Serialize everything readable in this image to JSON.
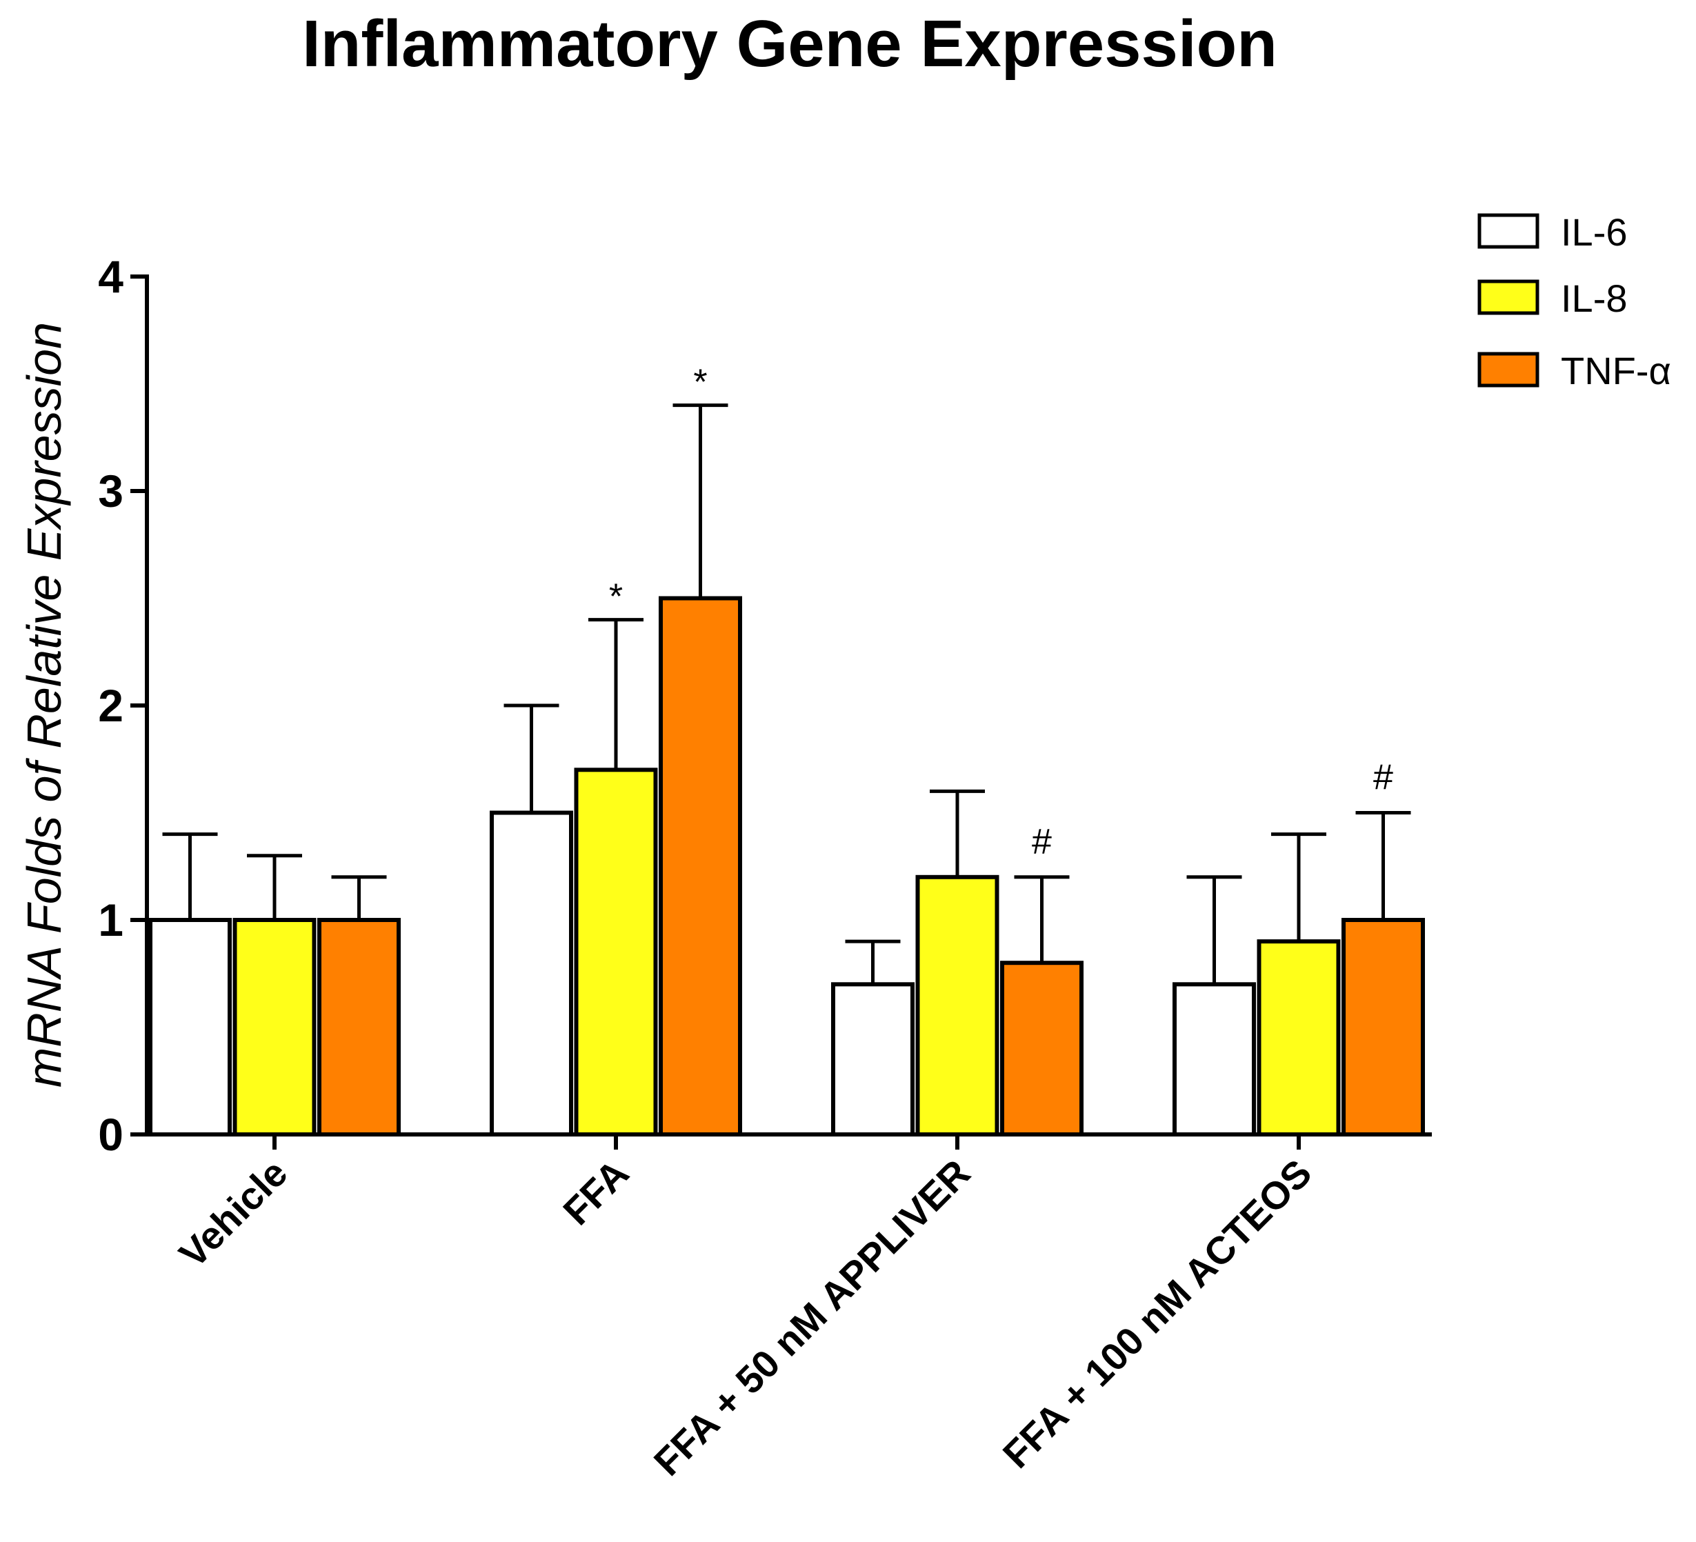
{
  "chart_data": {
    "type": "bar",
    "title": "Inflammatory Gene Expression",
    "xlabel": "",
    "ylabel": "mRNA Folds of Relative Expression",
    "ylim": [
      0,
      4
    ],
    "yticks": [
      "0",
      "1",
      "2",
      "3",
      "4"
    ],
    "categories": [
      "Vehicle",
      "FFA",
      "FFA + 50 nM APPLIVER",
      "FFA + 100 nM ACTEOS"
    ],
    "series": [
      {
        "name": "IL-6",
        "color": "#ffffff",
        "values": [
          1.0,
          1.5,
          0.7,
          0.7
        ],
        "errors": [
          0.4,
          0.5,
          0.2,
          0.5
        ],
        "annotations": [
          "",
          "",
          "",
          ""
        ]
      },
      {
        "name": "IL-8",
        "color": "#ffff19",
        "values": [
          1.0,
          1.7,
          1.2,
          0.9
        ],
        "errors": [
          0.3,
          0.7,
          0.4,
          0.5
        ],
        "annotations": [
          "",
          "*",
          "",
          ""
        ]
      },
      {
        "name": "TNF-α",
        "color": "#ff8000",
        "values": [
          1.0,
          2.5,
          0.8,
          1.0
        ],
        "errors": [
          0.2,
          0.9,
          0.4,
          0.5
        ],
        "annotations": [
          "",
          "*",
          "#",
          "#"
        ]
      }
    ],
    "legend_position": "top-right",
    "grid": false
  }
}
